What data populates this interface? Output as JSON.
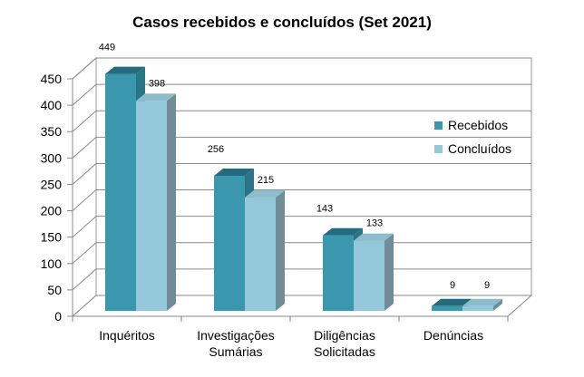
{
  "chart_data": {
    "type": "bar",
    "title": "Casos recebidos e concluídos (Set 2021)",
    "categories": [
      [
        "Inquéritos"
      ],
      [
        "Investigações",
        "Sumárias"
      ],
      [
        "Diligências",
        "Solicitadas"
      ],
      [
        "Denúncias"
      ]
    ],
    "series": [
      {
        "name": "Recebidos",
        "values": [
          449,
          256,
          143,
          9
        ],
        "color": "#3b97ad",
        "side": "#2a7487",
        "top": "#256b7d"
      },
      {
        "name": "Concluídos",
        "values": [
          398,
          215,
          133,
          9
        ],
        "color": "#93c7d9",
        "side": "#6f8d96",
        "top": "#8fbccb"
      }
    ],
    "ylim": [
      0,
      450
    ],
    "yticks": [
      0,
      50,
      100,
      150,
      200,
      250,
      300,
      350,
      400,
      450
    ],
    "grid": true,
    "legend": "right",
    "style": "3d-clustered-column"
  }
}
